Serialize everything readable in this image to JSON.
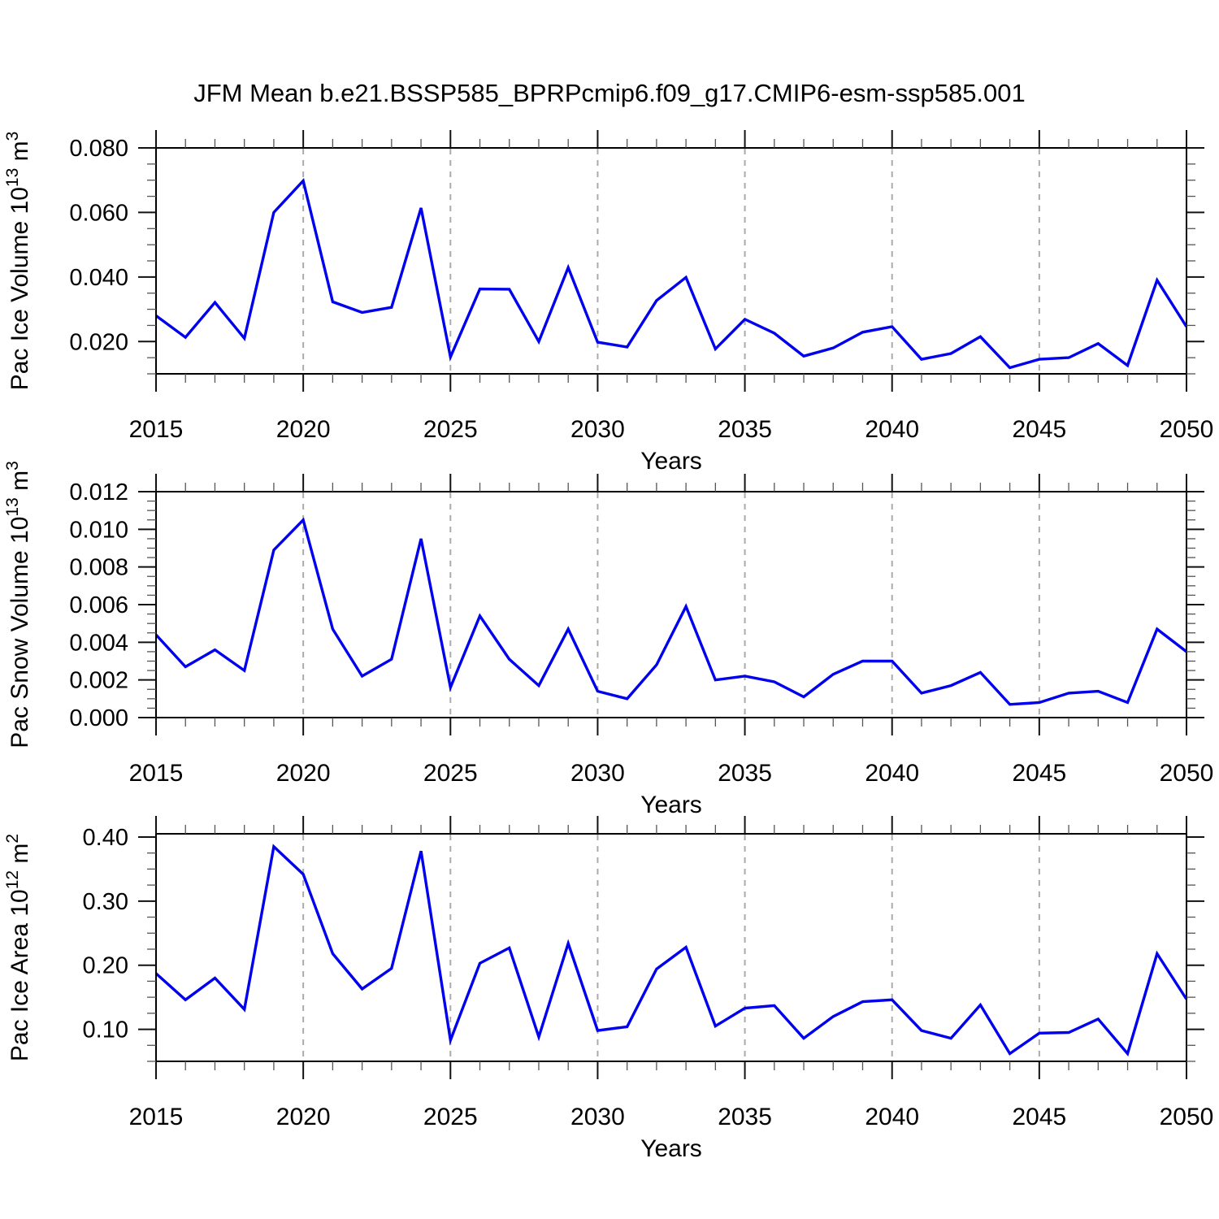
{
  "title": "JFM Mean b.e21.BSSP585_BPRPcmip6.f09_g17.CMIP6-esm-ssp585.001",
  "colors": {
    "line": "#0000ee",
    "grid": "#ababab",
    "axis": "#000000",
    "background": "#ffffff"
  },
  "x_axis": {
    "label": "Years",
    "min": 2015,
    "max": 2050,
    "major_step": 5,
    "minor_step": 1,
    "tick_labels": [
      "2015",
      "2020",
      "2025",
      "2030",
      "2035",
      "2040",
      "2045",
      "2050"
    ],
    "grid_years": [
      2020,
      2025,
      2030,
      2035,
      2040,
      2045
    ]
  },
  "chart_data": [
    {
      "type": "line",
      "name": "pac-ice-volume",
      "ylabel_text": "Pac Ice Volume 10^13 m^3",
      "ylabel": [
        {
          "t": "Pac Ice Volume 10"
        },
        {
          "t": "13",
          "sup": true
        },
        {
          "t": " m"
        },
        {
          "t": "3",
          "sup": true
        }
      ],
      "xlabel": "Years",
      "ylim": [
        0.01,
        0.08
      ],
      "yminor_step": 0.005,
      "yticks": [
        {
          "v": 0.02,
          "label": "0.020"
        },
        {
          "v": 0.04,
          "label": "0.040"
        },
        {
          "v": 0.06,
          "label": "0.060"
        },
        {
          "v": 0.08,
          "label": "0.080"
        }
      ],
      "x": [
        2015,
        2016,
        2017,
        2018,
        2019,
        2020,
        2021,
        2022,
        2023,
        2024,
        2025,
        2026,
        2027,
        2028,
        2029,
        2030,
        2031,
        2032,
        2033,
        2034,
        2035,
        2036,
        2037,
        2038,
        2039,
        2040,
        2041,
        2042,
        2043,
        2044,
        2045,
        2046,
        2047,
        2048,
        2049,
        2050
      ],
      "values": [
        0.028,
        0.0213,
        0.0321,
        0.021,
        0.06,
        0.0698,
        0.0323,
        0.029,
        0.0306,
        0.0614,
        0.0152,
        0.0363,
        0.0362,
        0.02,
        0.0429,
        0.0198,
        0.0183,
        0.0327,
        0.0399,
        0.0177,
        0.0269,
        0.0226,
        0.0155,
        0.018,
        0.0229,
        0.0246,
        0.0145,
        0.0163,
        0.0215,
        0.0119,
        0.0145,
        0.015,
        0.0194,
        0.0126,
        0.039,
        0.0246
      ]
    },
    {
      "type": "line",
      "name": "pac-snow-volume",
      "ylabel_text": "Pac Snow Volume 10^13 m^3",
      "ylabel": [
        {
          "t": "Pac Snow Volume 10"
        },
        {
          "t": "13",
          "sup": true
        },
        {
          "t": " m"
        },
        {
          "t": "3",
          "sup": true
        }
      ],
      "xlabel": "Years",
      "ylim": [
        0.0,
        0.012
      ],
      "yminor_step": 0.0005,
      "yticks": [
        {
          "v": 0.0,
          "label": "0.000"
        },
        {
          "v": 0.002,
          "label": "0.002"
        },
        {
          "v": 0.004,
          "label": "0.004"
        },
        {
          "v": 0.006,
          "label": "0.006"
        },
        {
          "v": 0.008,
          "label": "0.008"
        },
        {
          "v": 0.01,
          "label": "0.010"
        },
        {
          "v": 0.012,
          "label": "0.012"
        }
      ],
      "x": [
        2015,
        2016,
        2017,
        2018,
        2019,
        2020,
        2021,
        2022,
        2023,
        2024,
        2025,
        2026,
        2027,
        2028,
        2029,
        2030,
        2031,
        2032,
        2033,
        2034,
        2035,
        2036,
        2037,
        2038,
        2039,
        2040,
        2041,
        2042,
        2043,
        2044,
        2045,
        2046,
        2047,
        2048,
        2049,
        2050
      ],
      "values": [
        0.0044,
        0.0027,
        0.0036,
        0.0025,
        0.0089,
        0.0105,
        0.0047,
        0.0022,
        0.0031,
        0.0095,
        0.0016,
        0.0054,
        0.0031,
        0.0017,
        0.0047,
        0.0014,
        0.001,
        0.0028,
        0.0059,
        0.002,
        0.0022,
        0.0019,
        0.0011,
        0.0023,
        0.003,
        0.003,
        0.0013,
        0.0017,
        0.0024,
        0.0007,
        0.0008,
        0.0013,
        0.0014,
        0.0008,
        0.0047,
        0.0035
      ]
    },
    {
      "type": "line",
      "name": "pac-ice-area",
      "ylabel_text": "Pac Ice Area 10^12 m^2",
      "ylabel": [
        {
          "t": "Pac Ice Area 10"
        },
        {
          "t": "12",
          "sup": true
        },
        {
          "t": " m"
        },
        {
          "t": "2",
          "sup": true
        }
      ],
      "xlabel": "Years",
      "ylim": [
        0.05,
        0.405
      ],
      "yminor_step": 0.025,
      "yticks": [
        {
          "v": 0.1,
          "label": "0.10"
        },
        {
          "v": 0.2,
          "label": "0.20"
        },
        {
          "v": 0.3,
          "label": "0.30"
        },
        {
          "v": 0.4,
          "label": "0.40"
        }
      ],
      "x": [
        2015,
        2016,
        2017,
        2018,
        2019,
        2020,
        2021,
        2022,
        2023,
        2024,
        2025,
        2026,
        2027,
        2028,
        2029,
        2030,
        2031,
        2032,
        2033,
        2034,
        2035,
        2036,
        2037,
        2038,
        2039,
        2040,
        2041,
        2042,
        2043,
        2044,
        2045,
        2046,
        2047,
        2048,
        2049,
        2050
      ],
      "values": [
        0.187,
        0.146,
        0.18,
        0.131,
        0.385,
        0.342,
        0.218,
        0.163,
        0.195,
        0.378,
        0.083,
        0.203,
        0.227,
        0.088,
        0.234,
        0.098,
        0.104,
        0.194,
        0.228,
        0.105,
        0.133,
        0.137,
        0.086,
        0.12,
        0.143,
        0.146,
        0.098,
        0.086,
        0.138,
        0.062,
        0.094,
        0.095,
        0.116,
        0.062,
        0.218,
        0.147
      ]
    }
  ]
}
